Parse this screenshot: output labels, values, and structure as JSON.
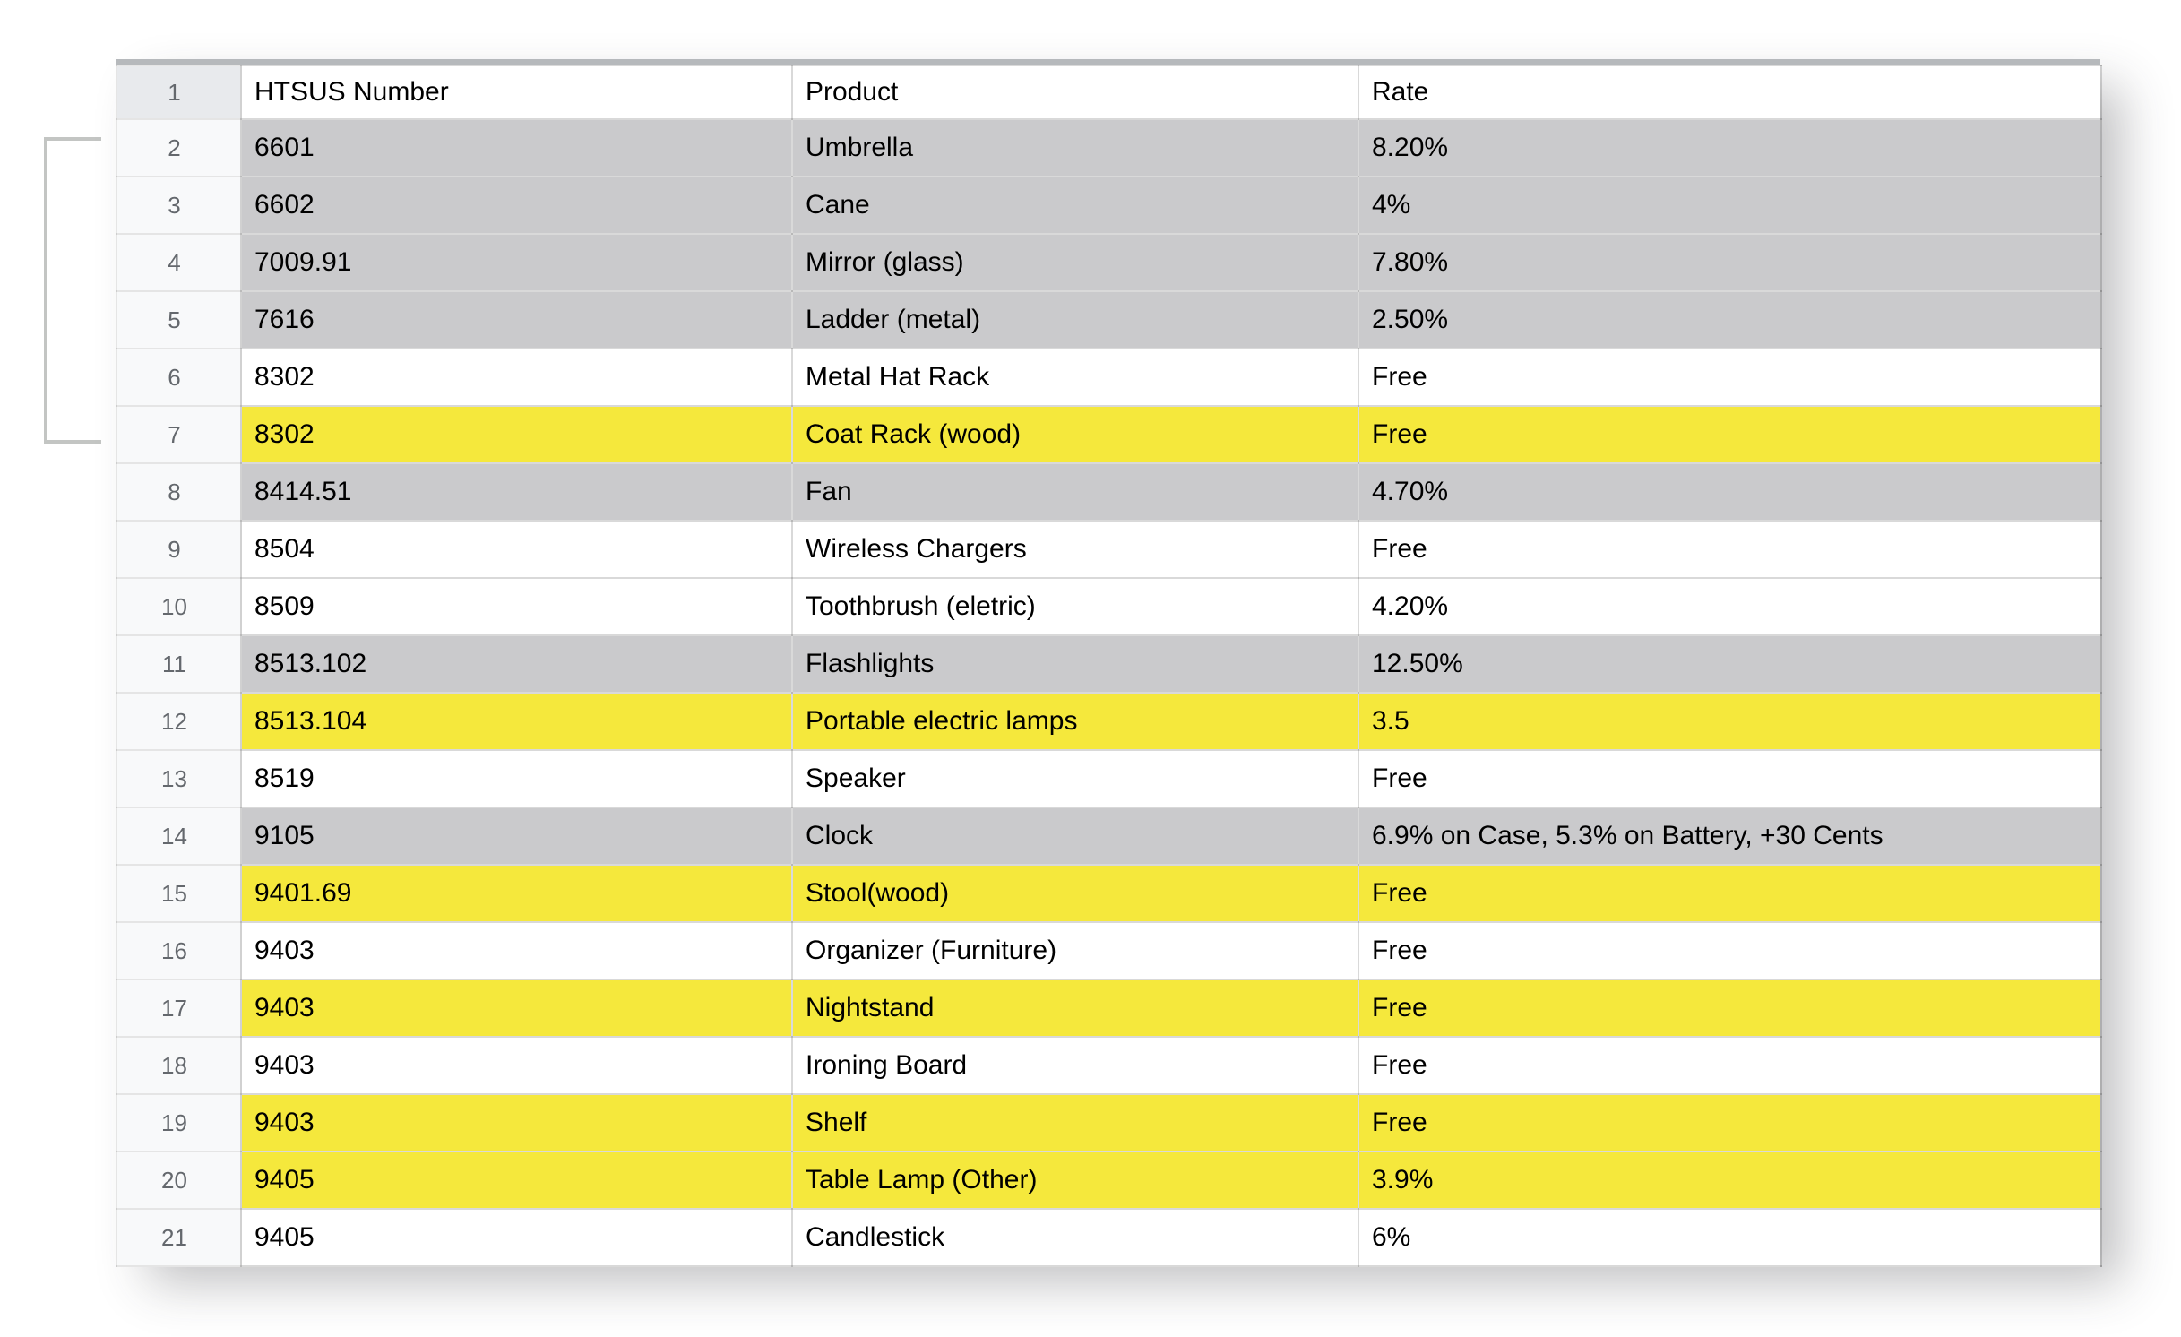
{
  "sheet": {
    "header_row_number": "1",
    "columns": [
      "HTSUS Number",
      "Product",
      "Rate"
    ],
    "rows": [
      {
        "num": "2",
        "htsus": "6601",
        "product": "Umbrella",
        "rate": "8.20%",
        "fill": "gray"
      },
      {
        "num": "3",
        "htsus": "6602",
        "product": "Cane",
        "rate": "4%",
        "fill": "gray"
      },
      {
        "num": "4",
        "htsus": "7009.91",
        "product": "Mirror (glass)",
        "rate": "7.80%",
        "fill": "gray"
      },
      {
        "num": "5",
        "htsus": "7616",
        "product": "Ladder (metal)",
        "rate": "2.50%",
        "fill": "gray"
      },
      {
        "num": "6",
        "htsus": "8302",
        "product": "Metal Hat Rack",
        "rate": "Free",
        "fill": "white"
      },
      {
        "num": "7",
        "htsus": "8302",
        "product": "Coat Rack (wood)",
        "rate": "Free",
        "fill": "yellow"
      },
      {
        "num": "8",
        "htsus": "8414.51",
        "product": "Fan",
        "rate": "4.70%",
        "fill": "gray"
      },
      {
        "num": "9",
        "htsus": "8504",
        "product": "Wireless Chargers",
        "rate": "Free",
        "fill": "white"
      },
      {
        "num": "10",
        "htsus": "8509",
        "product": "Toothbrush (eletric)",
        "rate": "4.20%",
        "fill": "white"
      },
      {
        "num": "11",
        "htsus": "8513.102",
        "product": "Flashlights",
        "rate": "12.50%",
        "fill": "gray"
      },
      {
        "num": "12",
        "htsus": "8513.104",
        "product": "Portable electric lamps",
        "rate": "3.5",
        "fill": "yellow"
      },
      {
        "num": "13",
        "htsus": "8519",
        "product": "Speaker",
        "rate": "Free",
        "fill": "white"
      },
      {
        "num": "14",
        "htsus": "9105",
        "product": "Clock",
        "rate": "6.9% on Case, 5.3% on Battery, +30 Cents",
        "fill": "gray"
      },
      {
        "num": "15",
        "htsus": "9401.69",
        "product": "Stool(wood)",
        "rate": "Free",
        "fill": "yellow"
      },
      {
        "num": "16",
        "htsus": "9403",
        "product": "Organizer (Furniture)",
        "rate": "Free",
        "fill": "white"
      },
      {
        "num": "17",
        "htsus": "9403",
        "product": "Nightstand",
        "rate": "Free",
        "fill": "yellow"
      },
      {
        "num": "18",
        "htsus": "9403",
        "product": "Ironing Board",
        "rate": "Free",
        "fill": "white"
      },
      {
        "num": "19",
        "htsus": "9403",
        "product": "Shelf",
        "rate": "Free",
        "fill": "yellow"
      },
      {
        "num": "20",
        "htsus": "9405",
        "product": "Table Lamp (Other)",
        "rate": "3.9%",
        "fill": "yellow"
      },
      {
        "num": "21",
        "htsus": "9405",
        "product": "Candlestick",
        "rate": "6%",
        "fill": "white"
      }
    ],
    "colors": {
      "highlight_yellow": "#f5e83c",
      "row_gray": "#cacacc",
      "row_white": "#ffffff",
      "rowhead_bg": "#f8f9fa",
      "rowhead_header_bg": "#e8eaed",
      "bracket_gray": "#c3c5c3"
    },
    "annotation": {
      "bracket_row_span": "rows 2-7"
    }
  }
}
